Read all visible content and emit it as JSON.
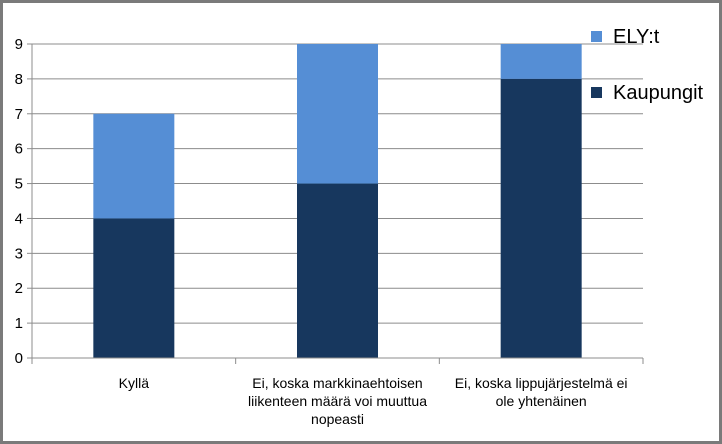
{
  "chart_data": {
    "type": "bar",
    "stacked": true,
    "categories": [
      "Kyllä",
      "Ei, koska markkinaehtoisen liikenteen määrä voi muuttua nopeasti",
      "Ei, koska lippujärjestelmä ei ole yhtenäinen"
    ],
    "category_label_lines": [
      [
        "Kyllä"
      ],
      [
        "Ei, koska markkinaehtoisen",
        "liikenteen määrä voi muuttua",
        "nopeasti"
      ],
      [
        "Ei, koska lippujärjestelmä ei",
        "ole yhtenäinen"
      ]
    ],
    "series": [
      {
        "name": "Kaupungit",
        "values": [
          4,
          5,
          8
        ],
        "color": "#17375e"
      },
      {
        "name": "ELY:t",
        "values": [
          3,
          4,
          1
        ],
        "color": "#558ed5"
      }
    ],
    "legend_order": [
      "ELY:t",
      "Kaupungit"
    ],
    "legend_position": "right",
    "ylim": [
      0,
      9
    ],
    "yticks": [
      0,
      1,
      2,
      3,
      4,
      5,
      6,
      7,
      8,
      9
    ],
    "grid": true,
    "title": "",
    "xlabel": "",
    "ylabel": ""
  }
}
